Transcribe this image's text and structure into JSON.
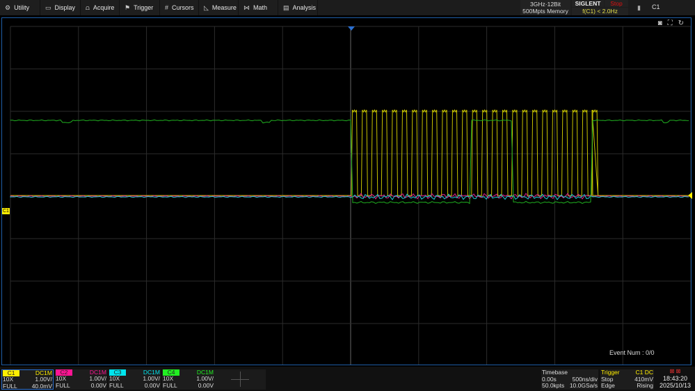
{
  "menu": [
    {
      "label": "Utility",
      "icon": "gear-icon",
      "glyph": "⚙"
    },
    {
      "label": "Display",
      "icon": "monitor-icon",
      "glyph": "▭"
    },
    {
      "label": "Acquire",
      "icon": "acquire-icon",
      "glyph": "⩍"
    },
    {
      "label": "Trigger",
      "icon": "flag-icon",
      "glyph": "⚑"
    },
    {
      "label": "Cursors",
      "icon": "hash-icon",
      "glyph": "#"
    },
    {
      "label": "Measure",
      "icon": "ruler-icon",
      "glyph": "◺"
    },
    {
      "label": "Math",
      "icon": "math-icon",
      "glyph": "⋈"
    },
    {
      "label": "Analysis",
      "icon": "analysis-icon",
      "glyph": "▤"
    }
  ],
  "status": {
    "spec_line1": "3GHz·12Bit",
    "spec_line2": "500Mpts Memory",
    "brand": "SIGLENT",
    "run_state": "Stop",
    "frequency": "f(C1) < 2.0Hz",
    "selected_channel": "C1"
  },
  "screen": {
    "channel_marker": "C1",
    "event_num": "Event Num : 0/0"
  },
  "channels": [
    {
      "name": "C1",
      "coupling": "DC1M",
      "probe": "10X",
      "scale": "1.00V/",
      "bandwidth": "FULL",
      "offset": "40.0mV",
      "color": "#ffee00"
    },
    {
      "name": "C2",
      "coupling": "DC1M",
      "probe": "10X",
      "scale": "1.00V/",
      "bandwidth": "FULL",
      "offset": "0.00V",
      "color": "#ff1493"
    },
    {
      "name": "C3",
      "coupling": "DC1M",
      "probe": "10X",
      "scale": "1.00V/",
      "bandwidth": "FULL",
      "offset": "0.00V",
      "color": "#00e5ee"
    },
    {
      "name": "C4",
      "coupling": "DC1M",
      "probe": "10X",
      "scale": "1.00V/",
      "bandwidth": "FULL",
      "offset": "0.00V",
      "color": "#22ee22"
    }
  ],
  "timebase": {
    "title": "Timebase",
    "delay": "0.00s",
    "scale": "500ns/div",
    "points": "50.0kpts",
    "rate": "10.0GSa/s"
  },
  "trigger": {
    "title": "Trigger",
    "source": "C1 DC",
    "state": "Stop",
    "level": "410mV",
    "type": "Edge",
    "slope": "Rising"
  },
  "clock": {
    "time": "18:43:20",
    "date": "2025/10/13"
  }
}
